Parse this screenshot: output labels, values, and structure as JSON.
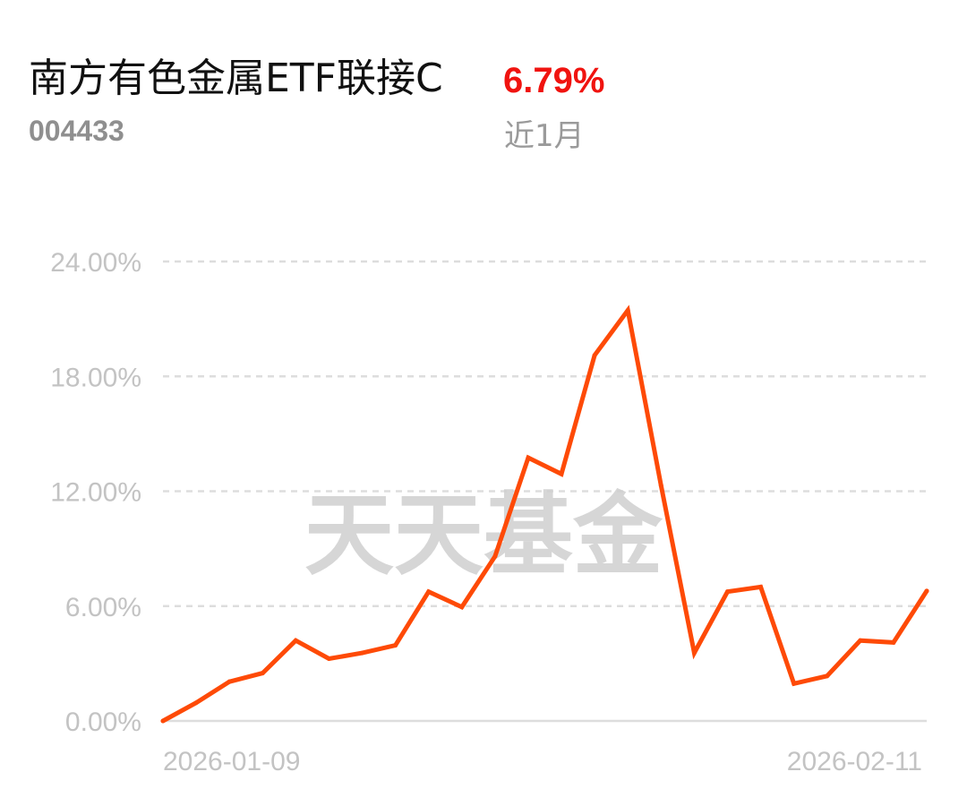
{
  "header": {
    "fund_name": "南方有色金属ETF联接C",
    "return_value": "6.79%",
    "fund_code": "004433",
    "period_label": "近1月"
  },
  "watermark": "天天基金",
  "colors": {
    "line": "#fe4a07",
    "return_value": "#f0130f",
    "grid": "#dddddd",
    "tick_text": "#c3c3c3",
    "watermark": "#cfcfcf"
  },
  "chart_data": {
    "type": "line",
    "ylim": [
      0,
      24
    ],
    "y_ticks": [
      {
        "value": 24,
        "label": "24.00%"
      },
      {
        "value": 18,
        "label": "18.00%"
      },
      {
        "value": 12,
        "label": "12.00%"
      },
      {
        "value": 6,
        "label": "6.00%"
      },
      {
        "value": 0,
        "label": "0.00%"
      }
    ],
    "x_labels": [
      "2026-01-09",
      "2026-02-11"
    ],
    "grid": true,
    "series": [
      {
        "values": [
          0.0,
          0.95,
          2.05,
          2.5,
          4.2,
          3.25,
          3.55,
          3.95,
          6.75,
          5.95,
          8.6,
          13.75,
          12.9,
          19.1,
          21.45,
          12.3,
          3.55,
          6.75,
          7.0,
          1.95,
          2.35,
          4.2,
          4.1,
          6.79
        ]
      }
    ]
  }
}
